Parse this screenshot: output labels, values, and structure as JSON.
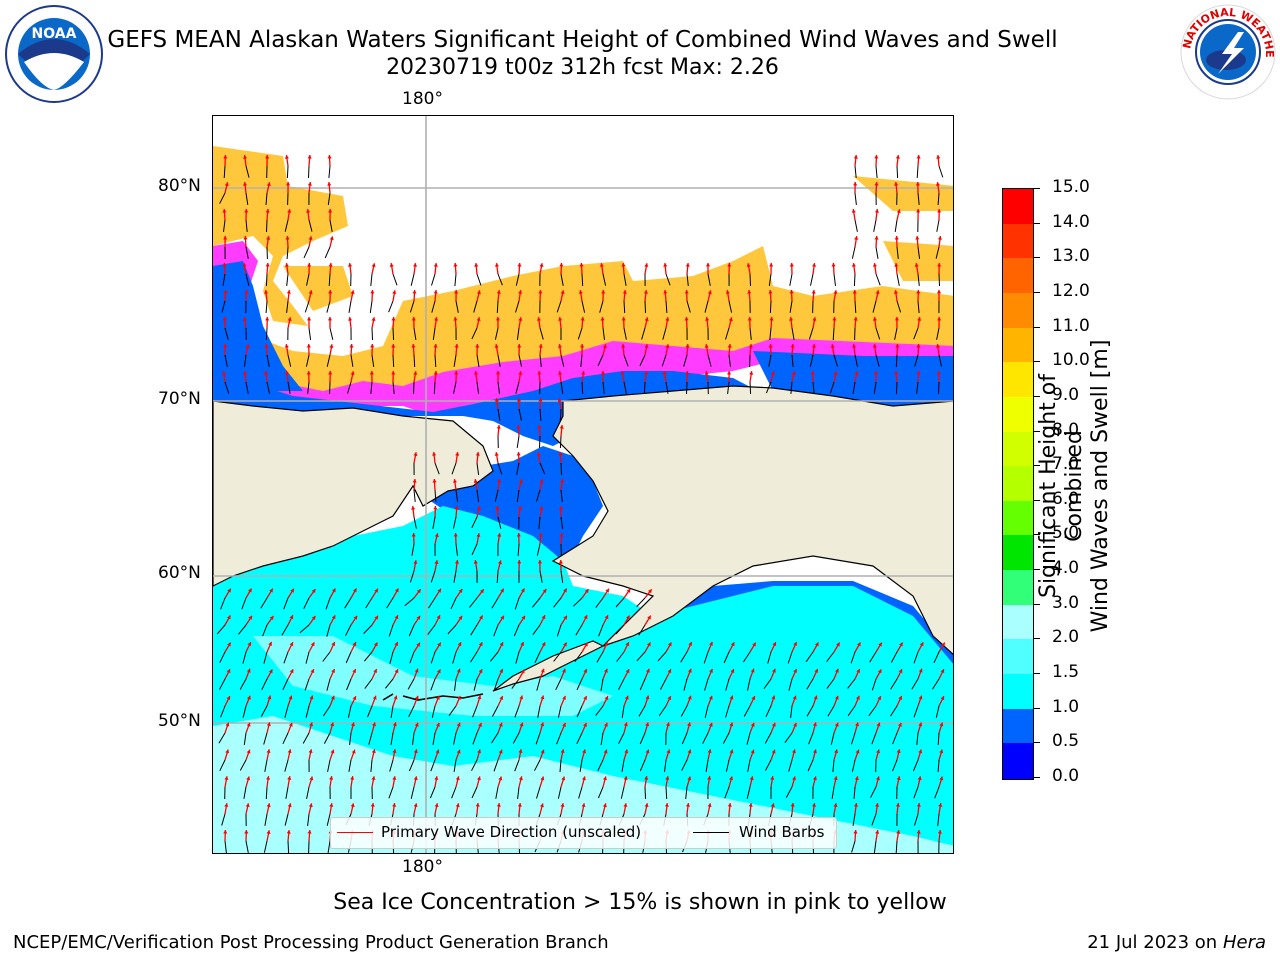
{
  "header": {
    "title": "GEFS MEAN Alaskan Waters Significant Height of Combined Wind Waves and Swell",
    "subtitle": "20230719 t00z 312h fcst   Max: 2.26",
    "noaa_logo_text": "NOAA",
    "nws_logo_text": "NATIONAL WEATHER SERVICE"
  },
  "map": {
    "lat_labels": [
      "80°N",
      "70°N",
      "60°N",
      "50°N"
    ],
    "lon_label_top": "180°",
    "lon_label_bottom": "180°",
    "legend": {
      "wave_label": "Primary Wave Direction (unscaled)",
      "wind_label": "Wind Barbs",
      "wave_color": "#ff0000",
      "wind_color": "#000000"
    },
    "colors": {
      "land": "#efedda",
      "ice": "#ffc83c",
      "ice_edge": "#ff3cff",
      "sea_low": "#0064ff",
      "sea_mid": "#00ffff",
      "sea_high": "#aaffff"
    }
  },
  "colorbar": {
    "label": "Significant Height of Combined Wind Waves and Swell [m]",
    "label_line1": "Significant Height of Combined",
    "label_line2": "Wind Waves and Swell [m]",
    "ticks": [
      "15.0",
      "14.0",
      "13.0",
      "12.0",
      "11.0",
      "10.0",
      "9.0",
      "8.0",
      "7.0",
      "6.0",
      "5.0",
      "4.0",
      "3.0",
      "2.0",
      "1.5",
      "1.0",
      "0.5",
      "0.0"
    ],
    "colors": [
      "#ff0000",
      "#ff3200",
      "#ff6400",
      "#ff8c00",
      "#ffb400",
      "#ffe600",
      "#f0ff00",
      "#d2ff00",
      "#b4ff00",
      "#64ff00",
      "#00e600",
      "#32ff78",
      "#aaffff",
      "#50ffff",
      "#00ffff",
      "#0064ff",
      "#0000ff"
    ]
  },
  "footer": {
    "ice_note": "Sea Ice Concentration > 15% is shown in pink to yellow",
    "branch": "NCEP/EMC/Verification Post Processing Product Generation Branch",
    "date": "21 Jul 2023 on ",
    "host": "Hera"
  }
}
